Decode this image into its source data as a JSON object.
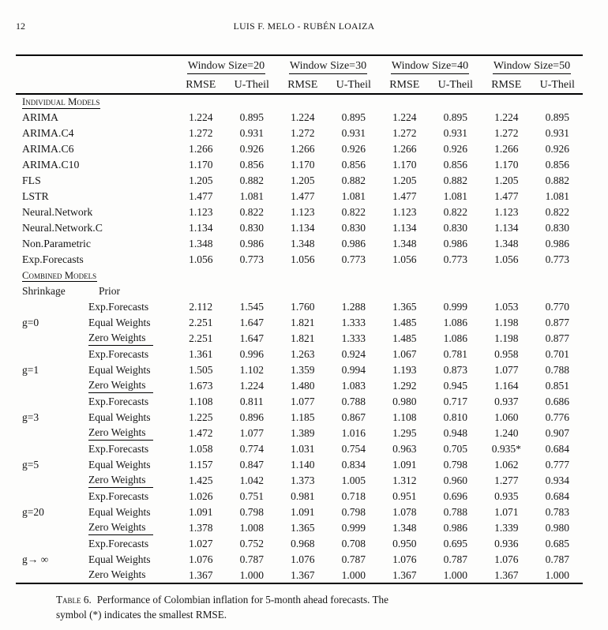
{
  "page": {
    "number": "12",
    "running_head": "LUIS F. MELO - RUBÉN LOAIZA"
  },
  "colors": {
    "ink": "#161616",
    "background": "#fdfdfc"
  },
  "table": {
    "window_groups": [
      "Window Size=20",
      "Window Size=30",
      "Window Size=40",
      "Window Size=50"
    ],
    "metric_headers": [
      "RMSE",
      "U-Theil"
    ],
    "individual_section_label": "Individual Models",
    "combined_section_label": "Combined Models",
    "shrinkage_header": "Shrinkage",
    "prior_header": "Prior",
    "individual_rows": [
      {
        "label": "ARIMA",
        "values": [
          "1.224",
          "0.895",
          "1.224",
          "0.895",
          "1.224",
          "0.895",
          "1.224",
          "0.895"
        ]
      },
      {
        "label": "ARIMA.C4",
        "values": [
          "1.272",
          "0.931",
          "1.272",
          "0.931",
          "1.272",
          "0.931",
          "1.272",
          "0.931"
        ]
      },
      {
        "label": "ARIMA.C6",
        "values": [
          "1.266",
          "0.926",
          "1.266",
          "0.926",
          "1.266",
          "0.926",
          "1.266",
          "0.926"
        ]
      },
      {
        "label": "ARIMA.C10",
        "values": [
          "1.170",
          "0.856",
          "1.170",
          "0.856",
          "1.170",
          "0.856",
          "1.170",
          "0.856"
        ]
      },
      {
        "label": "FLS",
        "values": [
          "1.205",
          "0.882",
          "1.205",
          "0.882",
          "1.205",
          "0.882",
          "1.205",
          "0.882"
        ]
      },
      {
        "label": "LSTR",
        "values": [
          "1.477",
          "1.081",
          "1.477",
          "1.081",
          "1.477",
          "1.081",
          "1.477",
          "1.081"
        ]
      },
      {
        "label": "Neural.Network",
        "values": [
          "1.123",
          "0.822",
          "1.123",
          "0.822",
          "1.123",
          "0.822",
          "1.123",
          "0.822"
        ]
      },
      {
        "label": "Neural.Network.C",
        "values": [
          "1.134",
          "0.830",
          "1.134",
          "0.830",
          "1.134",
          "0.830",
          "1.134",
          "0.830"
        ]
      },
      {
        "label": "Non.Parametric",
        "values": [
          "1.348",
          "0.986",
          "1.348",
          "0.986",
          "1.348",
          "0.986",
          "1.348",
          "0.986"
        ]
      },
      {
        "label": "Exp.Forecasts",
        "values": [
          "1.056",
          "0.773",
          "1.056",
          "0.773",
          "1.056",
          "0.773",
          "1.056",
          "0.773"
        ]
      }
    ],
    "combined_groups": [
      {
        "shrinkage": "g=0",
        "rows": [
          {
            "prior": "Exp.Forecasts",
            "underline": false,
            "values": [
              "2.112",
              "1.545",
              "1.760",
              "1.288",
              "1.365",
              "0.999",
              "1.053",
              "0.770"
            ]
          },
          {
            "prior": "Equal Weights",
            "underline": false,
            "values": [
              "2.251",
              "1.647",
              "1.821",
              "1.333",
              "1.485",
              "1.086",
              "1.198",
              "0.877"
            ]
          },
          {
            "prior": "Zero Weights",
            "underline": true,
            "values": [
              "2.251",
              "1.647",
              "1.821",
              "1.333",
              "1.485",
              "1.086",
              "1.198",
              "0.877"
            ]
          }
        ]
      },
      {
        "shrinkage": "g=1",
        "rows": [
          {
            "prior": "Exp.Forecasts",
            "underline": false,
            "values": [
              "1.361",
              "0.996",
              "1.263",
              "0.924",
              "1.067",
              "0.781",
              "0.958",
              "0.701"
            ]
          },
          {
            "prior": "Equal Weights",
            "underline": false,
            "values": [
              "1.505",
              "1.102",
              "1.359",
              "0.994",
              "1.193",
              "0.873",
              "1.077",
              "0.788"
            ]
          },
          {
            "prior": "Zero Weights",
            "underline": true,
            "values": [
              "1.673",
              "1.224",
              "1.480",
              "1.083",
              "1.292",
              "0.945",
              "1.164",
              "0.851"
            ]
          }
        ]
      },
      {
        "shrinkage": "g=3",
        "rows": [
          {
            "prior": "Exp.Forecasts",
            "underline": false,
            "values": [
              "1.108",
              "0.811",
              "1.077",
              "0.788",
              "0.980",
              "0.717",
              "0.937",
              "0.686"
            ]
          },
          {
            "prior": "Equal Weights",
            "underline": false,
            "values": [
              "1.225",
              "0.896",
              "1.185",
              "0.867",
              "1.108",
              "0.810",
              "1.060",
              "0.776"
            ]
          },
          {
            "prior": "Zero Weights",
            "underline": true,
            "values": [
              "1.472",
              "1.077",
              "1.389",
              "1.016",
              "1.295",
              "0.948",
              "1.240",
              "0.907"
            ]
          }
        ]
      },
      {
        "shrinkage": "g=5",
        "rows": [
          {
            "prior": "Exp.Forecasts",
            "underline": false,
            "values": [
              "1.058",
              "0.774",
              "1.031",
              "0.754",
              "0.963",
              "0.705",
              "0.935*",
              "0.684"
            ]
          },
          {
            "prior": "Equal Weights",
            "underline": false,
            "values": [
              "1.157",
              "0.847",
              "1.140",
              "0.834",
              "1.091",
              "0.798",
              "1.062",
              "0.777"
            ]
          },
          {
            "prior": "Zero Weights",
            "underline": true,
            "values": [
              "1.425",
              "1.042",
              "1.373",
              "1.005",
              "1.312",
              "0.960",
              "1.277",
              "0.934"
            ]
          }
        ]
      },
      {
        "shrinkage": "g=20",
        "rows": [
          {
            "prior": "Exp.Forecasts",
            "underline": false,
            "values": [
              "1.026",
              "0.751",
              "0.981",
              "0.718",
              "0.951",
              "0.696",
              "0.935",
              "0.684"
            ]
          },
          {
            "prior": "Equal Weights",
            "underline": false,
            "values": [
              "1.091",
              "0.798",
              "1.091",
              "0.798",
              "1.078",
              "0.788",
              "1.071",
              "0.783"
            ]
          },
          {
            "prior": "Zero Weights",
            "underline": true,
            "values": [
              "1.378",
              "1.008",
              "1.365",
              "0.999",
              "1.348",
              "0.986",
              "1.339",
              "0.980"
            ]
          }
        ]
      },
      {
        "shrinkage": "g→ ∞",
        "rows": [
          {
            "prior": "Exp.Forecasts",
            "underline": false,
            "values": [
              "1.027",
              "0.752",
              "0.968",
              "0.708",
              "0.950",
              "0.695",
              "0.936",
              "0.685"
            ]
          },
          {
            "prior": "Equal Weights",
            "underline": false,
            "values": [
              "1.076",
              "0.787",
              "1.076",
              "0.787",
              "1.076",
              "0.787",
              "1.076",
              "0.787"
            ]
          },
          {
            "prior": "Zero Weights",
            "underline": false,
            "values": [
              "1.367",
              "1.000",
              "1.367",
              "1.000",
              "1.367",
              "1.000",
              "1.367",
              "1.000"
            ]
          }
        ]
      }
    ]
  },
  "caption": {
    "label": "Table 6.",
    "text": "Performance of Colombian inflation for 5-month ahead forecasts. The symbol (*) indicates the smallest RMSE."
  }
}
